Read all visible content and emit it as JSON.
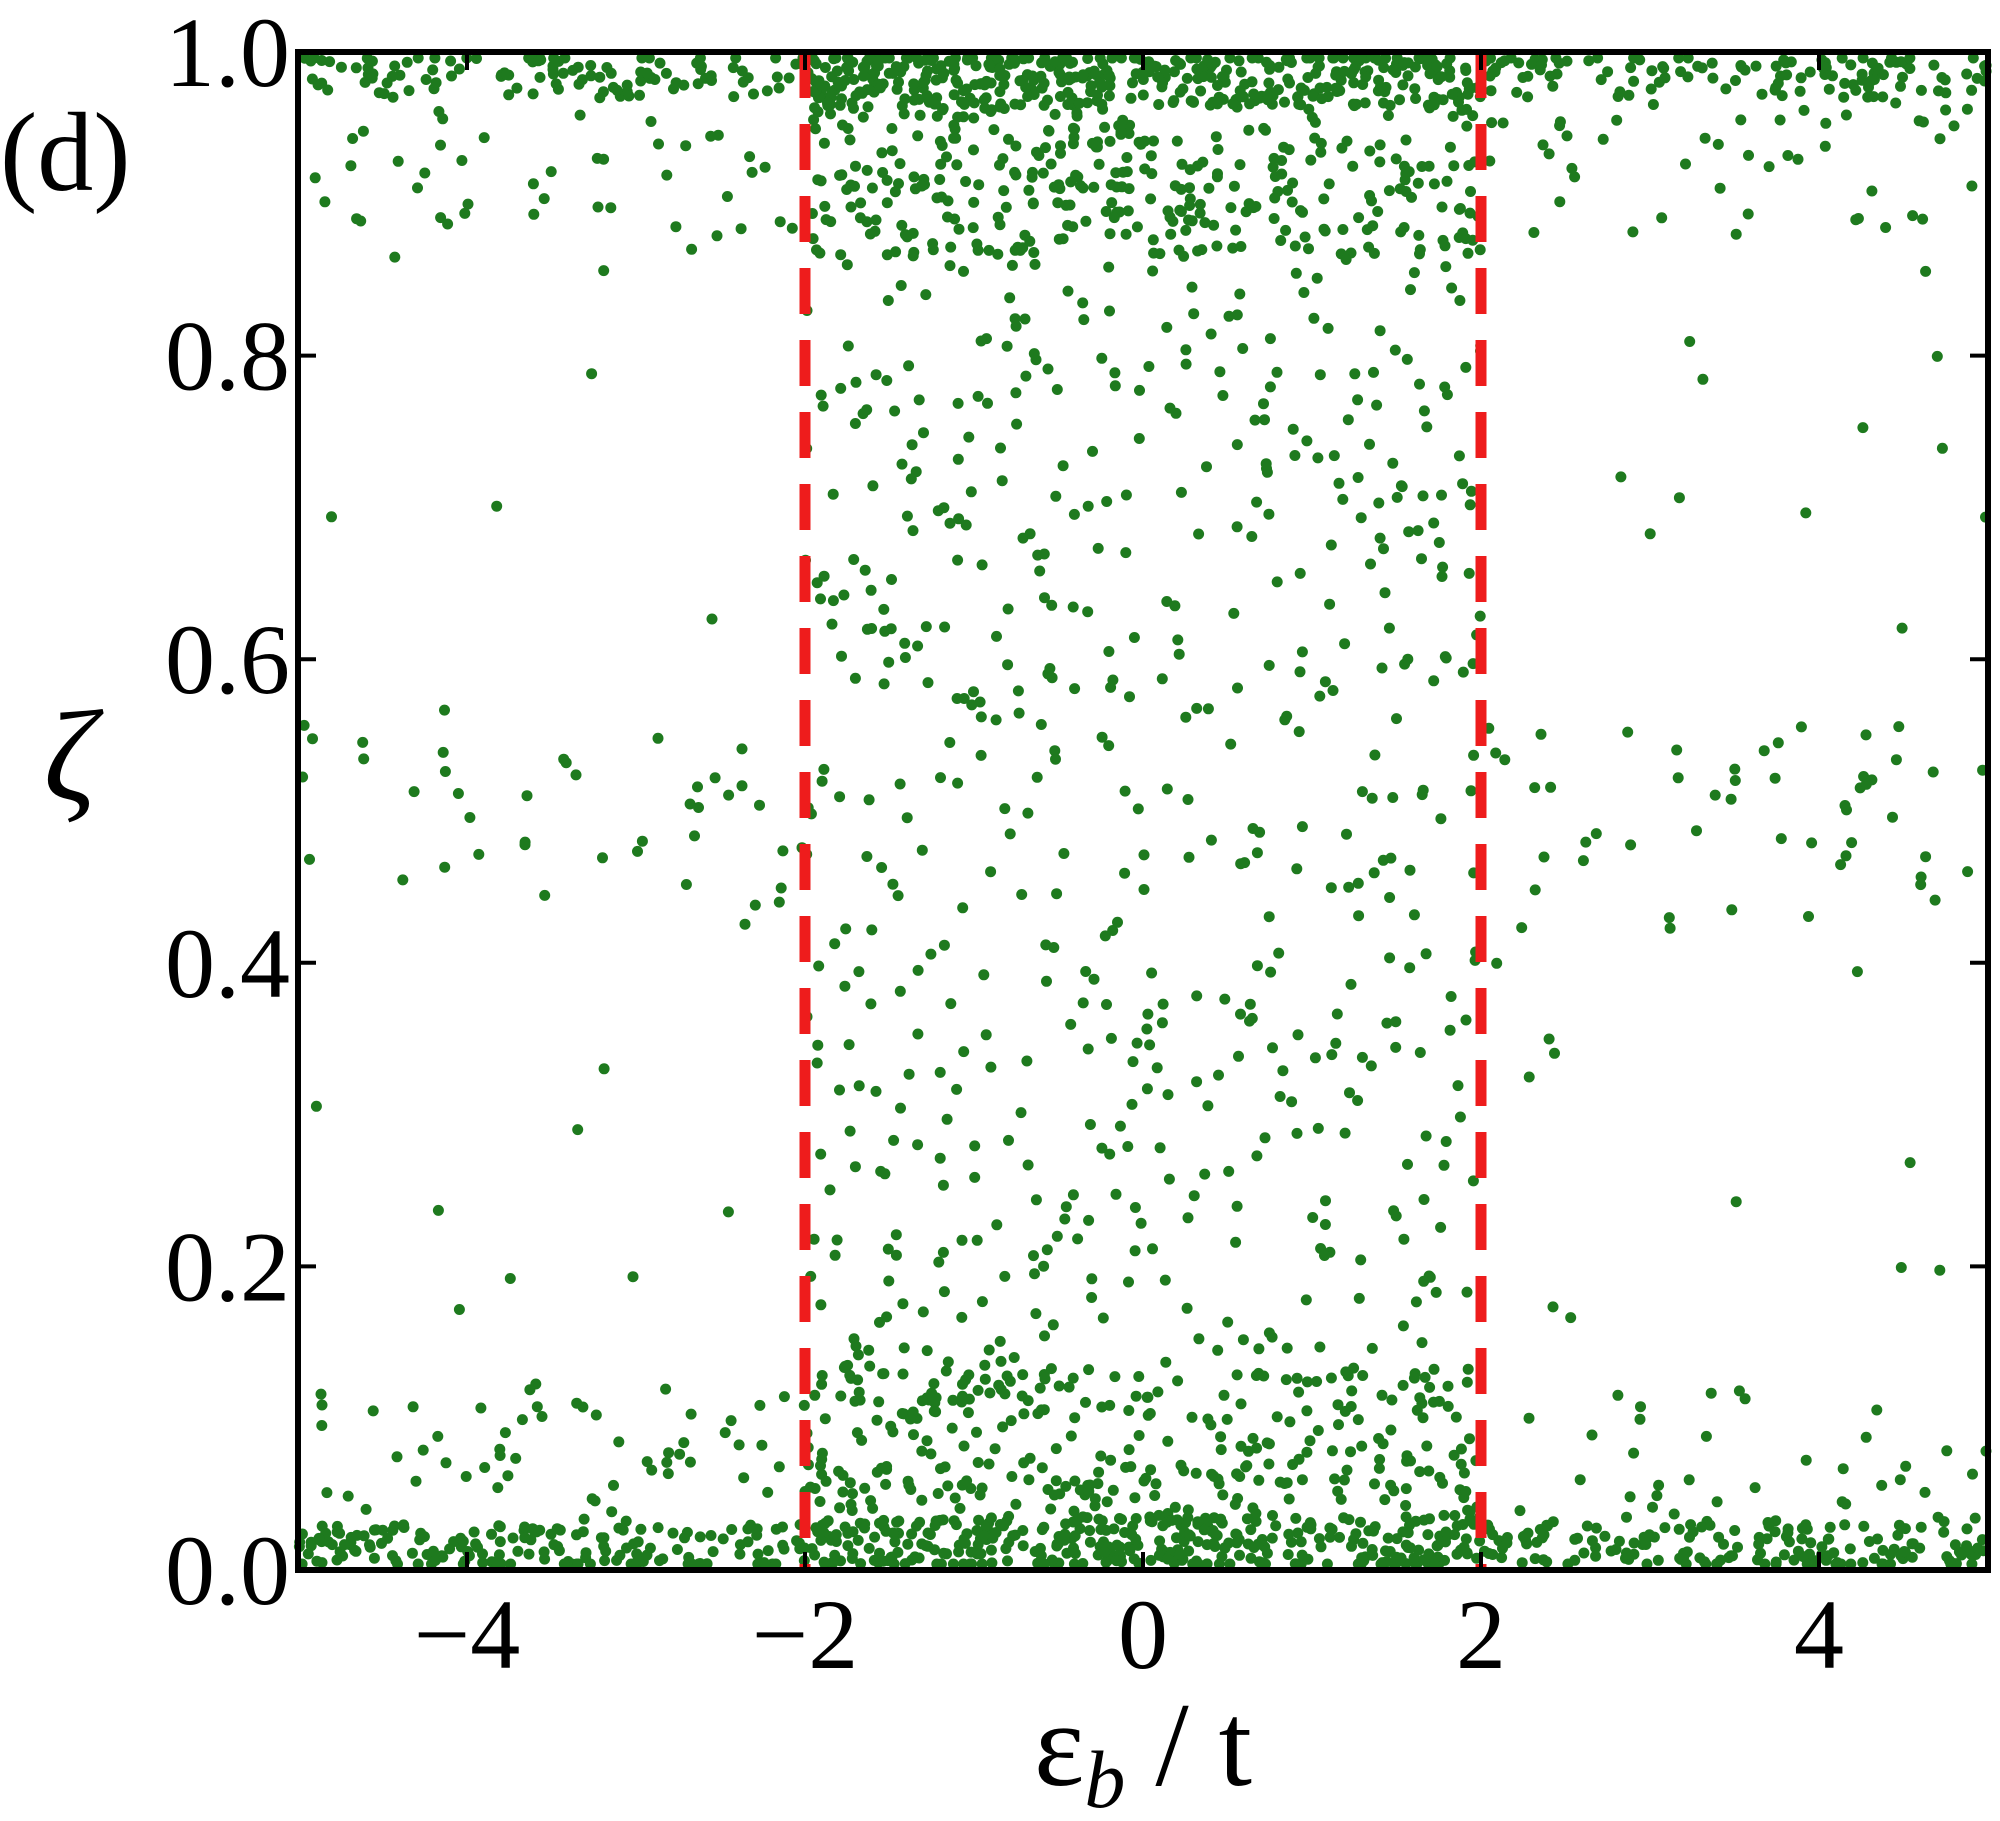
{
  "chart_data": {
    "type": "scatter",
    "panel_label": "(d)",
    "title": "",
    "xlabel_main": "ε",
    "xlabel_sub": "b",
    "xlabel_rest": " / t",
    "ylabel": "ζ",
    "xlim": [
      -5,
      5
    ],
    "ylim": [
      0,
      1
    ],
    "x_ticks": [
      -4,
      -2,
      0,
      2,
      4
    ],
    "x_tick_labels": [
      "−4",
      "−2",
      "0",
      "2",
      "4"
    ],
    "y_ticks": [
      0.0,
      0.2,
      0.4,
      0.6,
      0.8,
      1.0
    ],
    "y_tick_labels": [
      "0.0",
      "0.2",
      "0.4",
      "0.6",
      "0.8",
      "1.0"
    ],
    "grid": false,
    "legend": "none",
    "reference_lines": [
      {
        "orientation": "vertical",
        "x": -2,
        "style": "dashed",
        "color": "#ee1c1c"
      },
      {
        "orientation": "vertical",
        "x": 2,
        "style": "dashed",
        "color": "#ee1c1c"
      }
    ],
    "series": [
      {
        "color": "#1e7a1e",
        "sampling": "pseudo-random reconstruction of the point cloud",
        "inside_band_count": 2000,
        "outside_band_count": 900,
        "x": [],
        "y": []
      }
    ]
  }
}
